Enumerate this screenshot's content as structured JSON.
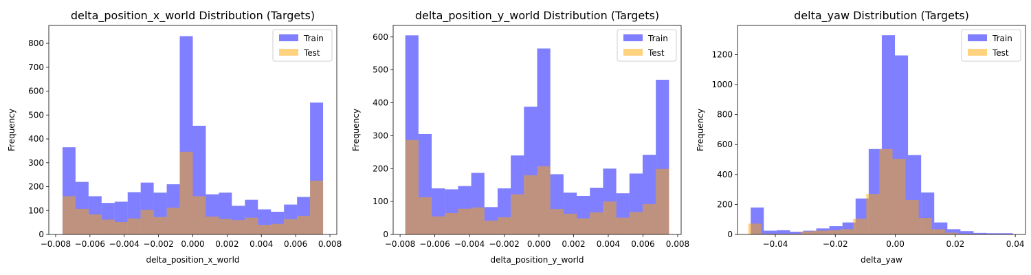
{
  "chart_data": [
    {
      "type": "histogram",
      "title": "delta_position_x_world Distribution (Targets)",
      "xlabel": "delta_position_x_world",
      "ylabel": "Frequency",
      "xlim": [
        -0.0084,
        0.0084
      ],
      "ylim": [
        0,
        875
      ],
      "xticks": [
        -0.008,
        -0.006,
        -0.004,
        -0.002,
        0.0,
        0.002,
        0.004,
        0.006,
        0.008
      ],
      "xtick_labels": [
        "−0.008",
        "−0.006",
        "−0.004",
        "−0.002",
        "0.000",
        "0.002",
        "0.004",
        "0.006",
        "0.008"
      ],
      "yticks": [
        0,
        100,
        200,
        300,
        400,
        500,
        600,
        700,
        800
      ],
      "legend_position": "top-right",
      "series": [
        {
          "name": "Train",
          "color": "#0000ff",
          "opacity": 0.5,
          "bin_start": -0.0076,
          "bin_width": 0.00076,
          "values": [
            365,
            220,
            160,
            132,
            137,
            177,
            217,
            175,
            210,
            830,
            455,
            168,
            175,
            120,
            145,
            105,
            95,
            125,
            157,
            552
          ]
        },
        {
          "name": "Test",
          "color": "#ffa500",
          "opacity": 0.5,
          "bin_start": -0.0076,
          "bin_width": 0.00076,
          "values": [
            160,
            107,
            84,
            62,
            52,
            67,
            103,
            73,
            112,
            346,
            160,
            75,
            65,
            60,
            70,
            40,
            44,
            64,
            78,
            225
          ]
        }
      ]
    },
    {
      "type": "histogram",
      "title": "delta_position_y_world Distribution (Targets)",
      "xlabel": "delta_position_y_world",
      "ylabel": "Frequency",
      "xlim": [
        -0.0084,
        0.0082
      ],
      "ylim": [
        0,
        635
      ],
      "xticks": [
        -0.008,
        -0.006,
        -0.004,
        -0.002,
        0.0,
        0.002,
        0.004,
        0.006,
        0.008
      ],
      "xtick_labels": [
        "−0.008",
        "−0.006",
        "−0.004",
        "−0.002",
        "0.000",
        "0.002",
        "0.004",
        "0.006",
        "0.008"
      ],
      "yticks": [
        0,
        100,
        200,
        300,
        400,
        500,
        600
      ],
      "legend_position": "top-right",
      "series": [
        {
          "name": "Train",
          "color": "#0000ff",
          "opacity": 0.5,
          "bin_start": -0.0077,
          "bin_width": 0.00076,
          "values": [
            605,
            305,
            140,
            137,
            147,
            187,
            83,
            140,
            240,
            388,
            565,
            183,
            127,
            117,
            142,
            200,
            125,
            185,
            242,
            470
          ]
        },
        {
          "name": "Test",
          "color": "#ffa500",
          "opacity": 0.5,
          "bin_start": -0.0077,
          "bin_width": 0.00076,
          "values": [
            287,
            113,
            55,
            65,
            78,
            82,
            42,
            52,
            122,
            180,
            207,
            77,
            63,
            49,
            67,
            100,
            51,
            68,
            92,
            199
          ]
        }
      ]
    },
    {
      "type": "histogram",
      "title": "delta_yaw Distribution (Targets)",
      "xlabel": "delta_yaw",
      "ylabel": "Frequency",
      "xlim": [
        -0.0526,
        0.0434
      ],
      "ylim": [
        0,
        1395
      ],
      "xticks": [
        -0.04,
        -0.02,
        0.0,
        0.02,
        0.04
      ],
      "xtick_labels": [
        "−0.04",
        "−0.02",
        "0.00",
        "0.02",
        "0.04"
      ],
      "yticks": [
        0,
        200,
        400,
        600,
        800,
        1000,
        1200
      ],
      "legend_position": "top-right",
      "series": [
        {
          "name": "Train",
          "color": "#0000ff",
          "opacity": 0.5,
          "bin_start": -0.0482,
          "bin_width": 0.00437,
          "values": [
            180,
            25,
            28,
            18,
            25,
            40,
            55,
            80,
            240,
            570,
            1330,
            1195,
            530,
            280,
            80,
            35,
            22,
            10,
            8,
            8
          ]
        },
        {
          "name": "Test",
          "color": "#ffa500",
          "opacity": 0.5,
          "bin_start": -0.049,
          "bin_width": 0.00437,
          "values": [
            72,
            5,
            5,
            5,
            20,
            25,
            28,
            35,
            105,
            270,
            570,
            505,
            230,
            110,
            35,
            12,
            5,
            3,
            2,
            2
          ]
        }
      ]
    }
  ]
}
